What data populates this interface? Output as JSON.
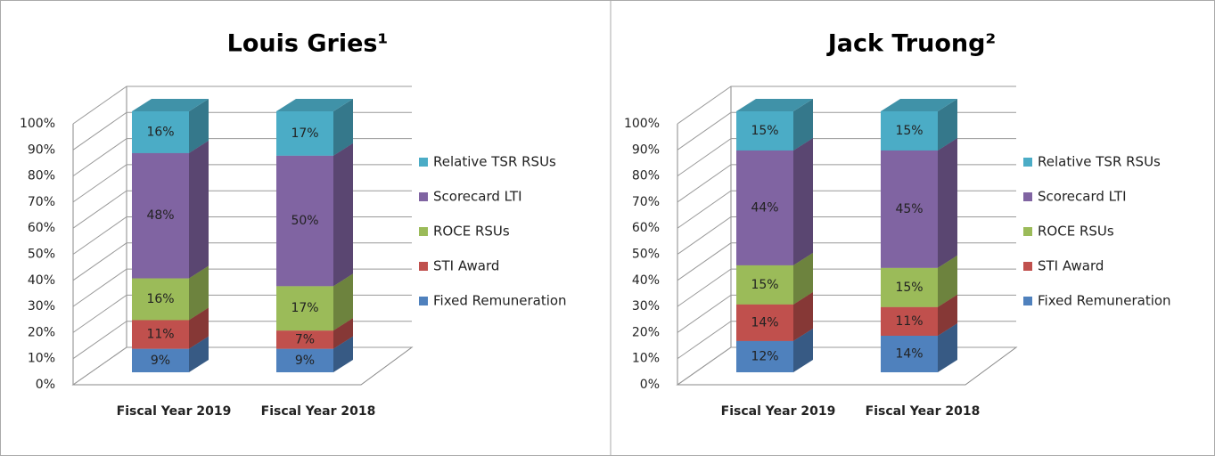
{
  "chart_data": [
    {
      "type": "bar",
      "stacked": true,
      "title": "Louis Gries¹",
      "categories": [
        "Fiscal Year 2019",
        "Fiscal Year 2018"
      ],
      "series": [
        {
          "name": "Fixed Remuneration",
          "color": "#4f81bd",
          "values": [
            9,
            9
          ],
          "value_labels": [
            "9%",
            "9%"
          ]
        },
        {
          "name": "STI Award",
          "color": "#c0504d",
          "values": [
            11,
            7
          ],
          "value_labels": [
            "11%",
            "7%"
          ]
        },
        {
          "name": "ROCE RSUs",
          "color": "#9bbb59",
          "values": [
            16,
            17
          ],
          "value_labels": [
            "16%",
            "17%"
          ]
        },
        {
          "name": "Scorecard LTI",
          "color": "#8064a2",
          "values": [
            48,
            50
          ],
          "value_labels": [
            "48%",
            "50%"
          ]
        },
        {
          "name": "Relative TSR RSUs",
          "color": "#4bacc6",
          "values": [
            16,
            17
          ],
          "value_labels": [
            "16%",
            "17%"
          ]
        }
      ],
      "ylim": [
        0,
        100
      ],
      "yticks": [
        {
          "value": 0,
          "label": "0%"
        },
        {
          "value": 10,
          "label": "10%"
        },
        {
          "value": 20,
          "label": "20%"
        },
        {
          "value": 30,
          "label": "30%"
        },
        {
          "value": 40,
          "label": "40%"
        },
        {
          "value": 50,
          "label": "50%"
        },
        {
          "value": 60,
          "label": "60%"
        },
        {
          "value": 70,
          "label": "70%"
        },
        {
          "value": 80,
          "label": "80%"
        },
        {
          "value": 90,
          "label": "90%"
        },
        {
          "value": 100,
          "label": "100%"
        }
      ],
      "grid": true,
      "legend": "right"
    },
    {
      "type": "bar",
      "stacked": true,
      "title": "Jack Truong²",
      "categories": [
        "Fiscal Year 2019",
        "Fiscal Year 2018"
      ],
      "series": [
        {
          "name": "Fixed Remuneration",
          "color": "#4f81bd",
          "values": [
            12,
            14
          ],
          "value_labels": [
            "12%",
            "14%"
          ]
        },
        {
          "name": "STI Award",
          "color": "#c0504d",
          "values": [
            14,
            11
          ],
          "value_labels": [
            "14%",
            "11%"
          ]
        },
        {
          "name": "ROCE RSUs",
          "color": "#9bbb59",
          "values": [
            15,
            15
          ],
          "value_labels": [
            "15%",
            "15%"
          ]
        },
        {
          "name": "Scorecard LTI",
          "color": "#8064a2",
          "values": [
            44,
            45
          ],
          "value_labels": [
            "44%",
            "45%"
          ]
        },
        {
          "name": "Relative TSR RSUs",
          "color": "#4bacc6",
          "values": [
            15,
            15
          ],
          "value_labels": [
            "15%",
            "15%"
          ]
        }
      ],
      "ylim": [
        0,
        100
      ],
      "yticks": [
        {
          "value": 0,
          "label": "0%"
        },
        {
          "value": 10,
          "label": "10%"
        },
        {
          "value": 20,
          "label": "20%"
        },
        {
          "value": 30,
          "label": "30%"
        },
        {
          "value": 40,
          "label": "40%"
        },
        {
          "value": 50,
          "label": "50%"
        },
        {
          "value": 60,
          "label": "60%"
        },
        {
          "value": 70,
          "label": "70%"
        },
        {
          "value": 80,
          "label": "80%"
        },
        {
          "value": 90,
          "label": "90%"
        },
        {
          "value": 100,
          "label": "100%"
        }
      ],
      "grid": true,
      "legend": "right"
    }
  ]
}
